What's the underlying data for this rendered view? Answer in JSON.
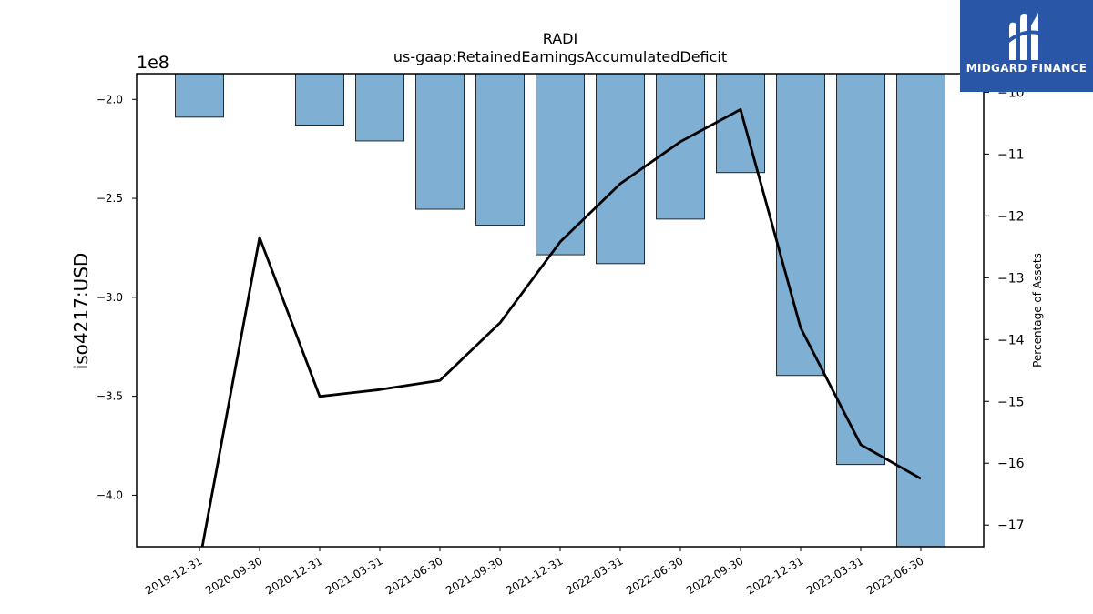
{
  "chart_data": {
    "type": "bar+line",
    "title": "RADI",
    "subtitle": "us-gaap:RetainedEarningsAccumulatedDeficit",
    "ylabel": "iso4217:USD",
    "y_offset_label": "1e8",
    "y2label": "Percentage of Assets",
    "categories": [
      "2019-12-31",
      "2020-09-30",
      "2020-12-31",
      "2021-03-31",
      "2021-06-30",
      "2021-09-30",
      "2021-12-31",
      "2022-03-31",
      "2022-06-30",
      "2022-09-30",
      "2022-12-31",
      "2023-03-31",
      "2023-06-30"
    ],
    "series": [
      {
        "axis": "left",
        "kind": "bar",
        "values": [
          -2.09,
          null,
          -2.13,
          -2.21,
          -2.555,
          -2.635,
          -2.785,
          -2.83,
          -2.605,
          -2.37,
          -3.395,
          -3.845,
          -4.26
        ]
      },
      {
        "axis": "right",
        "kind": "line",
        "values": [
          -17.6,
          -12.35,
          -14.92,
          -14.81,
          -14.66,
          -13.73,
          -12.42,
          -11.48,
          -10.8,
          -10.28,
          -13.81,
          -15.7,
          -16.25
        ]
      }
    ],
    "ylim": [
      -4.26,
      -1.87
    ],
    "yticks": [
      "-2.0",
      "-2.5",
      "-3.0",
      "-3.5",
      "-4.0"
    ],
    "y2lim": [
      -17.35,
      -9.7
    ],
    "y2ticks": [
      "-10",
      "-11",
      "-12",
      "-13",
      "-14",
      "-15",
      "-16",
      "-17"
    ],
    "grid": false,
    "colors": {
      "bar": "#7fb0d4",
      "bar_edge": "#000000",
      "line": "#000000"
    }
  },
  "logo": {
    "text": "MIDGARD FINANCE",
    "background": "#2a56a8"
  }
}
